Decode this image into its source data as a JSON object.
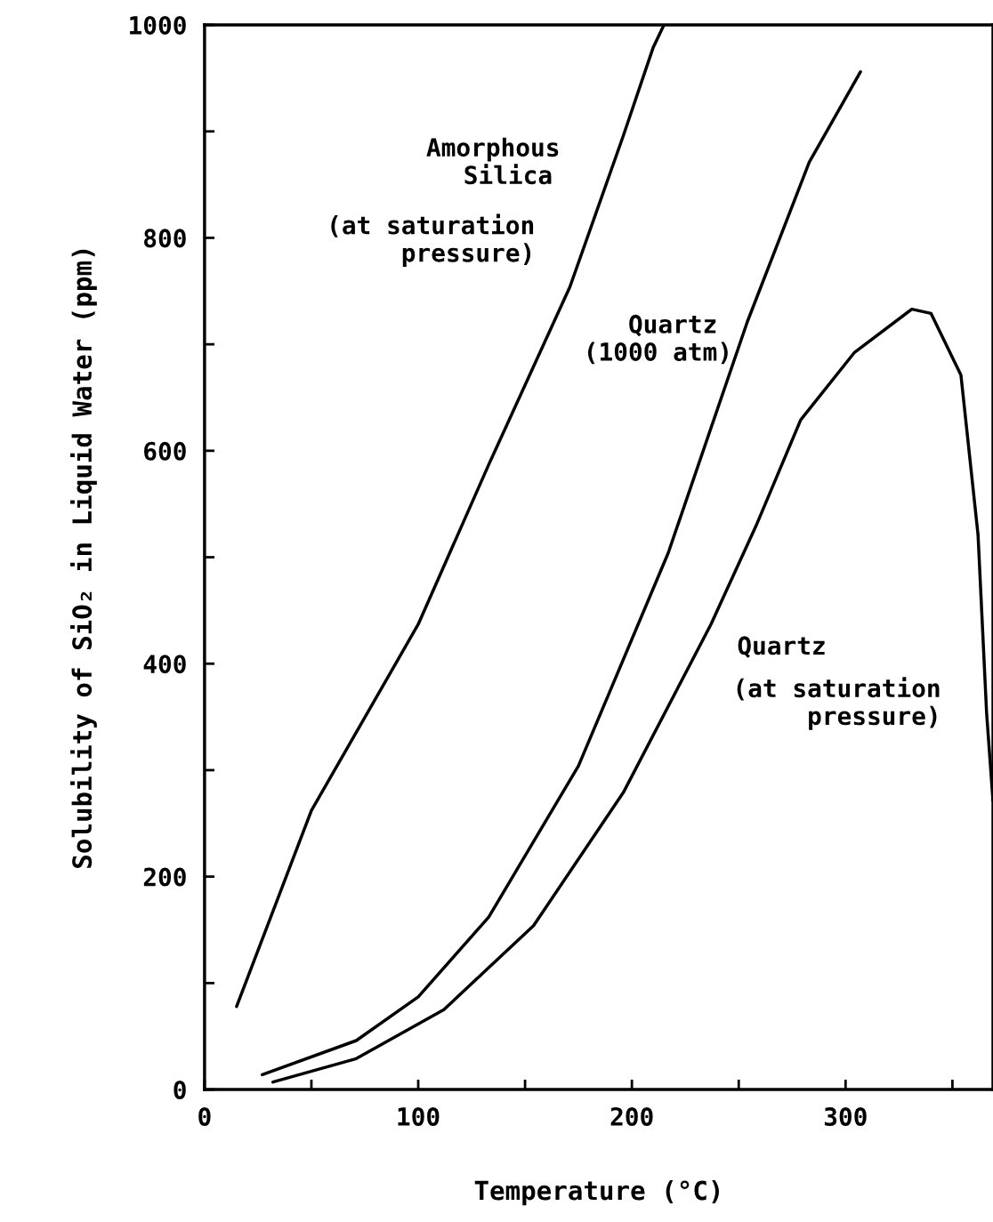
{
  "chart_data": {
    "type": "line",
    "xlabel": "Temperature (°C)",
    "ylabel": "Solubility of SiO₂ in Liquid Water (ppm)",
    "xlim": [
      0,
      369
    ],
    "ylim": [
      0,
      1000
    ],
    "xticks": [
      0,
      {
        "value": 50,
        "label": null
      },
      100,
      {
        "value": 150,
        "label": null
      },
      200,
      {
        "value": 250,
        "label": null
      },
      300,
      {
        "value": 350,
        "label": null
      }
    ],
    "yticks": [
      0,
      {
        "value": 100,
        "label": null
      },
      200,
      {
        "value": 300,
        "label": null
      },
      400,
      {
        "value": 500,
        "label": null
      },
      600,
      {
        "value": 700,
        "label": null
      },
      800,
      {
        "value": 900,
        "label": null
      },
      1000
    ],
    "grid": false,
    "marker": "none",
    "line_style": "solid",
    "series": [
      {
        "color": "#000000",
        "x": [
          15,
          50,
          100,
          133,
          171,
          196,
          210,
          215
        ],
        "values": [
          78,
          262,
          437,
          587,
          754,
          896,
          979,
          1000
        ]
      },
      {
        "color": "#000000",
        "x": [
          27,
          71,
          100,
          133,
          175,
          217,
          254,
          283,
          307
        ],
        "values": [
          14,
          46,
          87,
          162,
          304,
          504,
          721,
          871,
          956
        ]
      },
      {
        "color": "#000000",
        "x": [
          32,
          71,
          112,
          154,
          196,
          237,
          258,
          279,
          304,
          331,
          340,
          354,
          362,
          366,
          369
        ],
        "values": [
          7,
          29,
          75,
          154,
          279,
          437,
          529,
          629,
          692,
          733,
          729,
          671,
          521,
          354,
          271
        ]
      }
    ],
    "annotations": [
      "Amorphous\n  Silica",
      "(at saturation\n     pressure)",
      "  Quartz\n(1000 atm)",
      "Quartz",
      "(at saturation\n     pressure)"
    ]
  }
}
